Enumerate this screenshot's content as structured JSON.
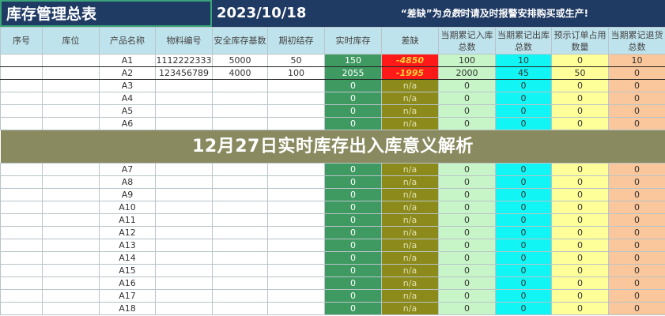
{
  "title": "库存管理总表",
  "date": "2023/10/18",
  "notice": {
    "prefix": "“差缺”为",
    "emph": "负数",
    "suffix": "时请及时报警安排购买或生产!"
  },
  "columns": [
    "序号",
    "库位",
    "产品名称",
    "物料编号",
    "安全库存基数",
    "期初结存",
    "实时库存",
    "差缺",
    "当期累记入库总数",
    "当期累记出库总数",
    "预示订单占用数量",
    "当期累记退货总数"
  ],
  "column_colors": {
    "header": "#bfe3ec",
    "realtime": "#3f9a62",
    "shortage": "#8c8a1a",
    "shortage_negative": "#ff1a1a",
    "inbound": "#c8f5c8",
    "outbound": "#11f5f5",
    "orders": "#ffff99",
    "returns": "#f9c79b"
  },
  "rows": [
    [
      "",
      "",
      "A1",
      "1112222333",
      "5000",
      "50",
      "150",
      "-4850",
      "100",
      "10",
      "0",
      "10"
    ],
    [
      "",
      "",
      "A2",
      "123456789",
      "4000",
      "100",
      "2055",
      "-1995",
      "2000",
      "45",
      "50",
      "0"
    ],
    [
      "",
      "",
      "A3",
      "",
      "",
      "",
      "0",
      "n/a",
      "0",
      "0",
      "0",
      "0"
    ],
    [
      "",
      "",
      "A4",
      "",
      "",
      "",
      "0",
      "n/a",
      "0",
      "0",
      "0",
      "0"
    ],
    [
      "",
      "",
      "A5",
      "",
      "",
      "",
      "0",
      "n/a",
      "0",
      "0",
      "0",
      "0"
    ],
    [
      "",
      "",
      "A6",
      "",
      "",
      "",
      "0",
      "n/a",
      "0",
      "0",
      "0",
      "0"
    ],
    [
      "",
      "",
      "A7",
      "",
      "",
      "",
      "0",
      "n/a",
      "0",
      "0",
      "0",
      "0"
    ],
    [
      "",
      "",
      "A8",
      "",
      "",
      "",
      "0",
      "n/a",
      "0",
      "0",
      "0",
      "0"
    ],
    [
      "",
      "",
      "A9",
      "",
      "",
      "",
      "0",
      "n/a",
      "0",
      "0",
      "0",
      "0"
    ],
    [
      "",
      "",
      "A10",
      "",
      "",
      "",
      "0",
      "n/a",
      "0",
      "0",
      "0",
      "0"
    ],
    [
      "",
      "",
      "A11",
      "",
      "",
      "",
      "0",
      "n/a",
      "0",
      "0",
      "0",
      "0"
    ],
    [
      "",
      "",
      "A12",
      "",
      "",
      "",
      "0",
      "n/a",
      "0",
      "0",
      "0",
      "0"
    ],
    [
      "",
      "",
      "A13",
      "",
      "",
      "",
      "0",
      "n/a",
      "0",
      "0",
      "0",
      "0"
    ],
    [
      "",
      "",
      "A14",
      "",
      "",
      "",
      "0",
      "n/a",
      "0",
      "0",
      "0",
      "0"
    ],
    [
      "",
      "",
      "A15",
      "",
      "",
      "",
      "0",
      "n/a",
      "0",
      "0",
      "0",
      "0"
    ],
    [
      "",
      "",
      "A16",
      "",
      "",
      "",
      "0",
      "n/a",
      "0",
      "0",
      "0",
      "0"
    ],
    [
      "",
      "",
      "A17",
      "",
      "",
      "",
      "0",
      "n/a",
      "0",
      "0",
      "0",
      "0"
    ],
    [
      "",
      "",
      "A18",
      "",
      "",
      "",
      "0",
      "n/a",
      "0",
      "0",
      "0",
      "0"
    ]
  ],
  "banner": "12月27日实时库存出入库意义解析"
}
